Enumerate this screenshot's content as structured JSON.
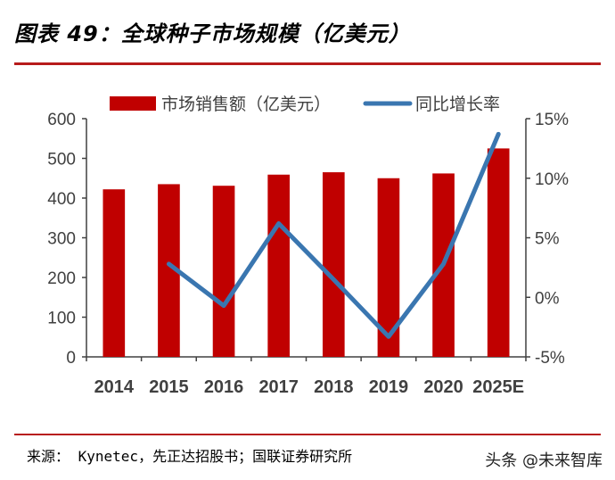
{
  "title": "图表 49：全球种子市场规模（亿美元）",
  "source": "来源： Kynetec，先正达招股书；国联证券研究所",
  "watermark": "头条 @未来智库",
  "colors": {
    "bar": "#c00000",
    "line": "#3a76b0",
    "rule": "#b71c1c"
  },
  "chart_data": {
    "type": "bar",
    "categories": [
      "2014",
      "2015",
      "2016",
      "2017",
      "2018",
      "2019",
      "2020",
      "2025E"
    ],
    "series": [
      {
        "name": "市场销售额（亿美元）",
        "type": "bar",
        "axis": "left",
        "values": [
          422,
          435,
          431,
          459,
          465,
          450,
          462,
          525
        ]
      },
      {
        "name": "同比增长率",
        "type": "line",
        "axis": "right",
        "values": [
          null,
          2.8,
          -0.7,
          6.2,
          1.5,
          -3.3,
          2.8,
          13.7
        ]
      }
    ],
    "ylim_left": [
      0,
      600
    ],
    "yticks_left": [
      "0",
      "100",
      "200",
      "300",
      "400",
      "500",
      "600"
    ],
    "ylim_right": [
      -5,
      15
    ],
    "yticks_right": [
      "-5%",
      "0%",
      "5%",
      "10%",
      "15%"
    ],
    "legend": "top",
    "grid": false
  }
}
